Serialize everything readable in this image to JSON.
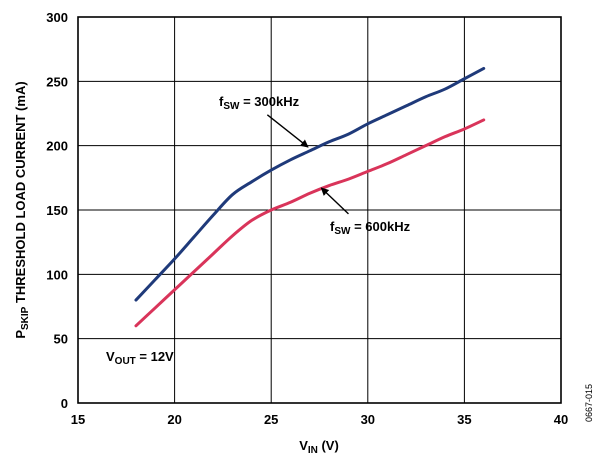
{
  "chart_data": {
    "type": "line",
    "title": "",
    "xlabel": {
      "main": "V",
      "sub": "IN",
      "rest": " (V)"
    },
    "ylabel": {
      "main": "P",
      "sub": "SKIP",
      "rest": " THRESHOLD LOAD CURRENT (mA)"
    },
    "xlim": [
      15,
      40
    ],
    "ylim": [
      0,
      300
    ],
    "xticks": [
      15,
      20,
      25,
      30,
      35,
      40
    ],
    "yticks": [
      0,
      50,
      100,
      150,
      200,
      250,
      300
    ],
    "grid": true,
    "series": [
      {
        "color": "#1f3a7a",
        "x": [
          18,
          19,
          20,
          21,
          22,
          23,
          24,
          25,
          26,
          27,
          28,
          29,
          30,
          31,
          32,
          33,
          34,
          35,
          36
        ],
        "y": [
          80,
          96,
          112,
          129,
          146,
          162,
          172,
          181,
          189,
          196,
          203,
          209,
          217,
          224,
          231,
          238,
          244,
          252,
          260
        ]
      },
      {
        "color": "#d9345a",
        "x": [
          18,
          19,
          20,
          21,
          22,
          23,
          24,
          25,
          26,
          27,
          28,
          29,
          30,
          31,
          32,
          33,
          34,
          35,
          36
        ],
        "y": [
          60,
          74,
          88,
          102,
          116,
          130,
          142,
          150,
          156,
          163,
          169,
          174,
          180,
          186,
          193,
          200,
          207,
          213,
          220
        ]
      }
    ],
    "annotations": [
      {
        "id": "fsw300",
        "main": "f",
        "sub": "SW",
        "rest": " = 300kHz"
      },
      {
        "id": "fsw600",
        "main": "f",
        "sub": "SW",
        "rest": " = 600kHz"
      },
      {
        "id": "vout",
        "main": "V",
        "sub": "OUT",
        "rest": " = 12V"
      }
    ],
    "figure_id": "0667-015"
  }
}
